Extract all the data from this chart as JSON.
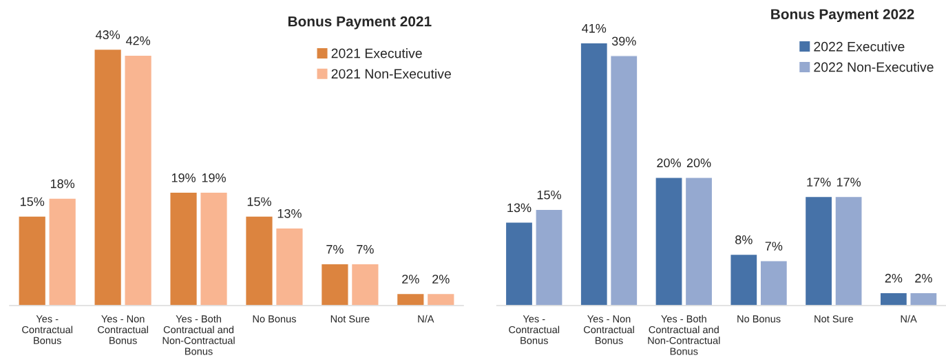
{
  "chart_data": [
    {
      "type": "bar",
      "title": "Bonus Payment 2021",
      "categories": [
        "Yes - Contractual Bonus",
        "Yes - Non Contractual Bonus",
        "Yes - Both Contractual and Non-Contractual Bonus",
        "No Bonus",
        "Not Sure",
        "N/A"
      ],
      "legend": "top right",
      "grid": false,
      "series": [
        {
          "name": "2021 Executive",
          "color": "#dc843f",
          "values": [
            15,
            43,
            19,
            15,
            7,
            2
          ],
          "value_labels": [
            "15%",
            "43%",
            "19%",
            "15%",
            "7%",
            "2%"
          ]
        },
        {
          "name": "2021 Non-Executive",
          "color": "#f9b591",
          "values": [
            18,
            42,
            19,
            13,
            7,
            2
          ],
          "value_labels": [
            "18%",
            "42%",
            "19%",
            "13%",
            "7%",
            "2%"
          ]
        }
      ]
    },
    {
      "type": "bar",
      "title": "Bonus Payment 2022",
      "categories": [
        "Yes - Contractual Bonus",
        "Yes - Non Contractual Bonus",
        "Yes - Both Contractual and Non-Contractual Bonus",
        "No Bonus",
        "Not Sure",
        "N/A"
      ],
      "legend": "top right",
      "grid": false,
      "series": [
        {
          "name": "2022 Executive",
          "color": "#4672a8",
          "values": [
            13,
            41,
            20,
            8,
            17,
            2
          ],
          "value_labels": [
            "13%",
            "41%",
            "20%",
            "8%",
            "17%",
            "2%"
          ]
        },
        {
          "name": "2022 Non-Executive",
          "color": "#95a9d0",
          "values": [
            15,
            39,
            20,
            7,
            17,
            2
          ],
          "value_labels": [
            "15%",
            "39%",
            "20%",
            "7%",
            "17%",
            "2%"
          ]
        }
      ]
    }
  ]
}
